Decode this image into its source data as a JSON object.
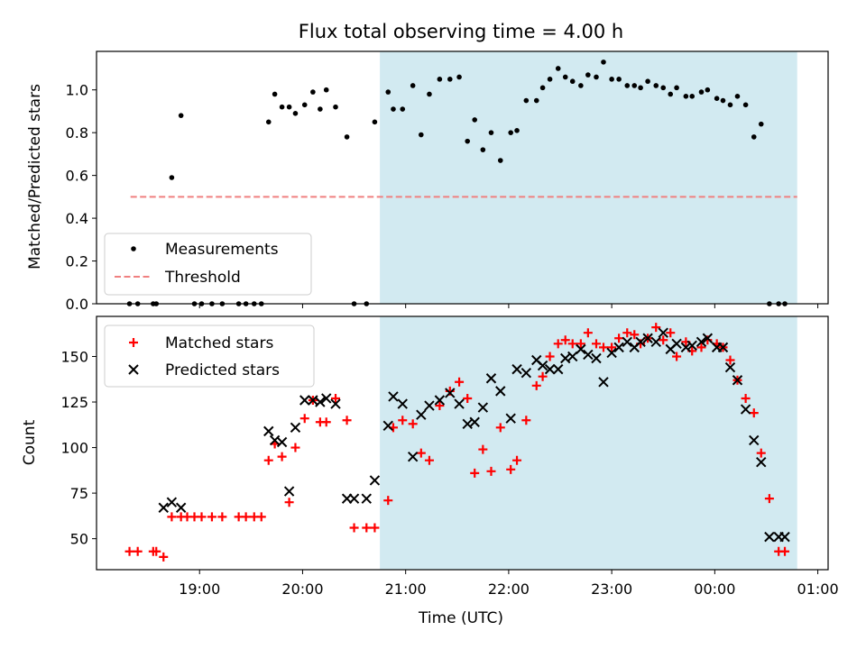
{
  "chart_data": [
    {
      "type": "scatter",
      "title": "Flux total observing time = 4.00 h",
      "xlabel": "",
      "ylabel": "Matched/Predicted stars",
      "ylim": [
        0,
        1.18
      ],
      "xlim": [
        18.0,
        25.1
      ],
      "yticks": [
        0.0,
        0.2,
        0.4,
        0.6,
        0.8,
        1.0
      ],
      "ytick_labels": [
        "0.0",
        "0.2",
        "0.4",
        "0.6",
        "0.8",
        "1.0"
      ],
      "shaded_region": {
        "x0": 20.75,
        "x1": 24.8,
        "color": "#add8e6"
      },
      "legend": {
        "position": "lower-left",
        "entries": [
          "Measurements",
          "Threshold"
        ]
      },
      "threshold": {
        "name": "Threshold",
        "value": 0.5,
        "x0": 18.33,
        "x1": 24.8,
        "color": "#f08080",
        "style": "dashed"
      },
      "series": [
        {
          "name": "Measurements",
          "color": "#000000",
          "marker": "dot",
          "x": [
            18.32,
            18.4,
            18.55,
            18.58,
            18.73,
            18.82,
            18.95,
            19.02,
            19.12,
            19.22,
            19.38,
            19.45,
            19.53,
            19.6,
            19.67,
            19.73,
            19.8,
            19.87,
            19.93,
            20.02,
            20.1,
            20.17,
            20.23,
            20.32,
            20.43,
            20.5,
            20.62,
            20.7,
            20.83,
            20.88,
            20.97,
            21.07,
            21.15,
            21.23,
            21.33,
            21.43,
            21.52,
            21.6,
            21.67,
            21.75,
            21.83,
            21.92,
            22.02,
            22.08,
            22.17,
            22.27,
            22.33,
            22.4,
            22.48,
            22.55,
            22.62,
            22.7,
            22.77,
            22.85,
            22.92,
            23.0,
            23.07,
            23.15,
            23.22,
            23.28,
            23.35,
            23.43,
            23.5,
            23.57,
            23.63,
            23.72,
            23.78,
            23.87,
            23.93,
            24.02,
            24.08,
            24.15,
            24.22,
            24.3,
            24.38,
            24.45,
            24.53,
            24.62,
            24.68
          ],
          "y": [
            0.0,
            0.0,
            0.0,
            0.0,
            0.59,
            0.88,
            0.0,
            0.0,
            0.0,
            0.0,
            0.0,
            0.0,
            0.0,
            0.0,
            0.85,
            0.98,
            0.92,
            0.92,
            0.89,
            0.93,
            0.99,
            0.91,
            1.0,
            0.92,
            0.78,
            0.0,
            0.0,
            0.85,
            0.99,
            0.91,
            0.91,
            1.02,
            0.79,
            0.98,
            1.05,
            1.05,
            1.06,
            0.76,
            0.86,
            0.72,
            0.8,
            0.67,
            0.8,
            0.81,
            0.95,
            0.95,
            1.01,
            1.05,
            1.1,
            1.06,
            1.04,
            1.02,
            1.07,
            1.06,
            1.13,
            1.05,
            1.05,
            1.02,
            1.02,
            1.01,
            1.04,
            1.02,
            1.01,
            0.98,
            1.01,
            0.97,
            0.97,
            0.99,
            1.0,
            0.96,
            0.95,
            0.93,
            0.97,
            0.93,
            0.78,
            0.84,
            0.0,
            0.0,
            0.0
          ]
        }
      ]
    },
    {
      "type": "scatter",
      "title": "",
      "xlabel": "Time (UTC)",
      "ylabel": "Count",
      "ylim": [
        33,
        172
      ],
      "xlim": [
        18.0,
        25.1
      ],
      "yticks": [
        50,
        75,
        100,
        125,
        150
      ],
      "ytick_labels": [
        "50",
        "75",
        "100",
        "125",
        "150"
      ],
      "xticks": [
        19,
        20,
        21,
        22,
        23,
        24,
        25
      ],
      "xtick_labels": [
        "19:00",
        "20:00",
        "21:00",
        "22:00",
        "23:00",
        "00:00",
        "01:00"
      ],
      "shaded_region": {
        "x0": 20.75,
        "x1": 24.8,
        "color": "#add8e6"
      },
      "legend": {
        "position": "upper-left",
        "entries": [
          "Matched stars",
          "Predicted stars"
        ]
      },
      "series": [
        {
          "name": "Matched stars",
          "color": "#ff0000",
          "marker": "plus",
          "x": [
            18.32,
            18.4,
            18.55,
            18.58,
            18.65,
            18.73,
            18.82,
            18.88,
            18.95,
            19.02,
            19.12,
            19.22,
            19.38,
            19.45,
            19.53,
            19.6,
            19.67,
            19.73,
            19.8,
            19.87,
            19.93,
            20.02,
            20.1,
            20.17,
            20.23,
            20.32,
            20.43,
            20.5,
            20.62,
            20.7,
            20.83,
            20.88,
            20.97,
            21.07,
            21.15,
            21.23,
            21.33,
            21.43,
            21.52,
            21.6,
            21.67,
            21.75,
            21.83,
            21.92,
            22.02,
            22.08,
            22.17,
            22.27,
            22.33,
            22.4,
            22.48,
            22.55,
            22.62,
            22.7,
            22.77,
            22.85,
            22.92,
            23.0,
            23.07,
            23.15,
            23.22,
            23.28,
            23.35,
            23.43,
            23.5,
            23.57,
            23.63,
            23.72,
            23.78,
            23.87,
            23.93,
            24.02,
            24.08,
            24.15,
            24.22,
            24.3,
            24.38,
            24.45,
            24.53,
            24.62,
            24.68
          ],
          "y": [
            43,
            43,
            43,
            43,
            40,
            62,
            62,
            62,
            62,
            62,
            62,
            62,
            62,
            62,
            62,
            62,
            93,
            102,
            95,
            70,
            100,
            116,
            126,
            114,
            114,
            127,
            115,
            56,
            56,
            56,
            71,
            111,
            115,
            113,
            97,
            93,
            123,
            131,
            136,
            127,
            86,
            99,
            87,
            111,
            88,
            93,
            115,
            134,
            139,
            150,
            157,
            159,
            157,
            157,
            163,
            157,
            155,
            155,
            160,
            163,
            162,
            157,
            160,
            166,
            159,
            163,
            150,
            158,
            153,
            155,
            159,
            157,
            155,
            148,
            137,
            127,
            119,
            97,
            72,
            43,
            43
          ]
        },
        {
          "name": "Predicted stars",
          "color": "#000000",
          "marker": "x",
          "x": [
            18.65,
            18.73,
            18.82,
            19.67,
            19.73,
            19.8,
            19.87,
            19.93,
            20.02,
            20.1,
            20.17,
            20.23,
            20.32,
            20.43,
            20.5,
            20.62,
            20.7,
            20.83,
            20.88,
            20.97,
            21.07,
            21.15,
            21.23,
            21.33,
            21.43,
            21.52,
            21.6,
            21.67,
            21.75,
            21.83,
            21.92,
            22.02,
            22.08,
            22.17,
            22.27,
            22.33,
            22.4,
            22.48,
            22.55,
            22.62,
            22.7,
            22.77,
            22.85,
            22.92,
            23.0,
            23.07,
            23.15,
            23.22,
            23.28,
            23.35,
            23.43,
            23.5,
            23.57,
            23.63,
            23.72,
            23.78,
            23.87,
            23.93,
            24.02,
            24.08,
            24.15,
            24.22,
            24.3,
            24.38,
            24.45,
            24.53,
            24.62,
            24.68
          ],
          "y": [
            67,
            70,
            67,
            109,
            104,
            103,
            76,
            111,
            126,
            126,
            125,
            127,
            124,
            72,
            72,
            72,
            82,
            112,
            128,
            124,
            95,
            118,
            123,
            126,
            130,
            124,
            113,
            114,
            122,
            138,
            131,
            116,
            143,
            141,
            148,
            145,
            143,
            143,
            149,
            150,
            154,
            151,
            149,
            136,
            152,
            155,
            158,
            155,
            158,
            160,
            158,
            163,
            154,
            157,
            155,
            156,
            158,
            160,
            155,
            155,
            144,
            137,
            121,
            104,
            92,
            51,
            51,
            51
          ]
        }
      ]
    }
  ]
}
